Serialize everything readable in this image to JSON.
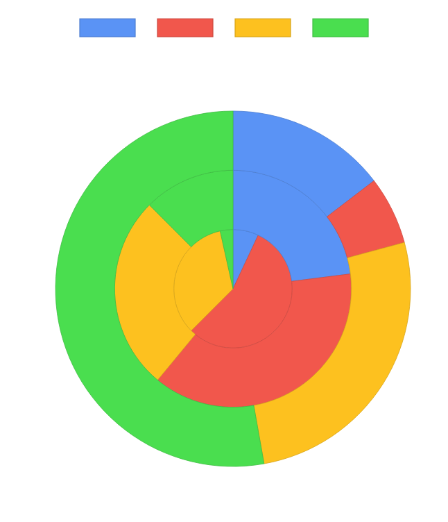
{
  "chart_data": {
    "type": "pie",
    "categories": [
      null,
      null,
      null,
      null
    ],
    "colors": [
      "#5a93f5",
      "#f1574c",
      "#fdc11f",
      "#4ade4f"
    ],
    "series": [
      {
        "values": [
          7,
          55.5,
          34,
          3.5
        ]
      },
      {
        "values": [
          23,
          38,
          26.5,
          12.5
        ]
      },
      {
        "values": [
          14.6,
          6.2,
          26.4,
          52.8
        ]
      }
    ]
  }
}
